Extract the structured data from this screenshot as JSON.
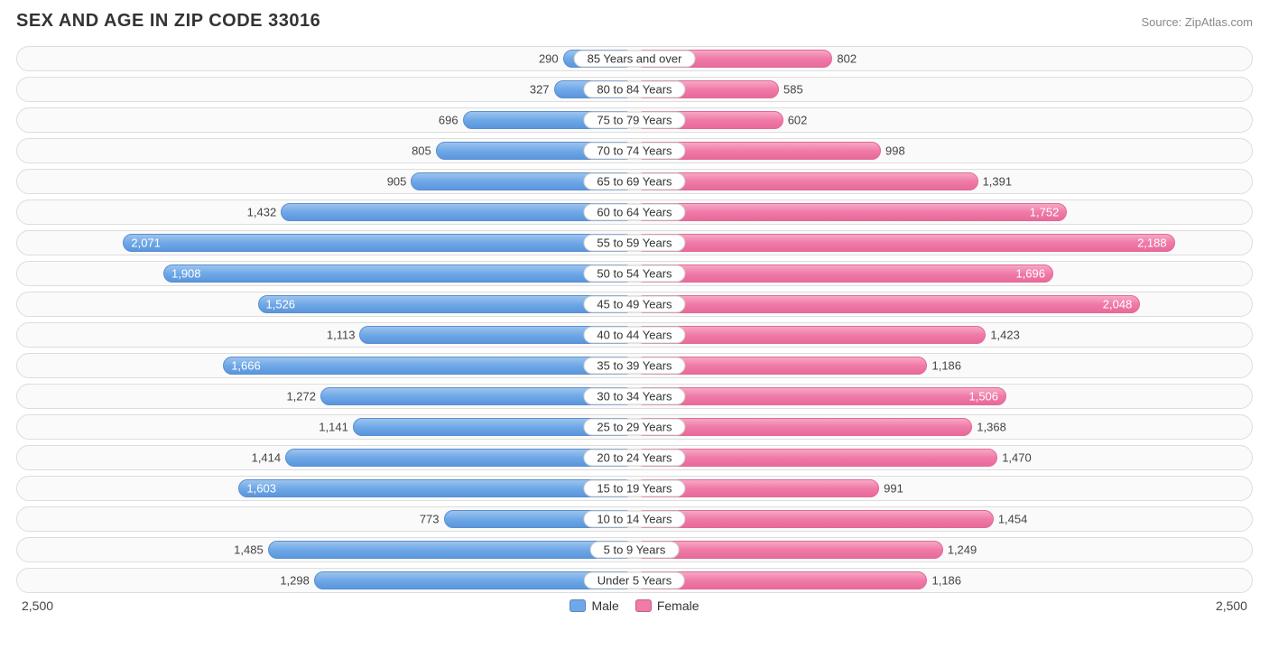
{
  "title": "SEX AND AGE IN ZIP CODE 33016",
  "source": "Source: ZipAtlas.com",
  "chart": {
    "type": "population-pyramid",
    "axis_max": 2500,
    "axis_max_label": "2,500",
    "male_color": "#6fa8e8",
    "male_gradient_top": "#9dc3ed",
    "male_gradient_bottom": "#5a96dc",
    "female_color": "#f07aa8",
    "female_gradient_top": "#f7a8c4",
    "female_gradient_bottom": "#e86a9a",
    "row_border_color": "#dddddd",
    "row_background": "#fafafa",
    "label_pill_bg": "#ffffff",
    "label_pill_border": "#cccccc",
    "text_color": "#444444",
    "inside_text_color": "#ffffff",
    "title_fontsize": 20,
    "label_fontsize": 13,
    "legend": {
      "male": "Male",
      "female": "Female"
    },
    "inside_threshold": 1500,
    "rows": [
      {
        "category": "85 Years and over",
        "male": 290,
        "male_label": "290",
        "female": 802,
        "female_label": "802"
      },
      {
        "category": "80 to 84 Years",
        "male": 327,
        "male_label": "327",
        "female": 585,
        "female_label": "585"
      },
      {
        "category": "75 to 79 Years",
        "male": 696,
        "male_label": "696",
        "female": 602,
        "female_label": "602"
      },
      {
        "category": "70 to 74 Years",
        "male": 805,
        "male_label": "805",
        "female": 998,
        "female_label": "998"
      },
      {
        "category": "65 to 69 Years",
        "male": 905,
        "male_label": "905",
        "female": 1391,
        "female_label": "1,391"
      },
      {
        "category": "60 to 64 Years",
        "male": 1432,
        "male_label": "1,432",
        "female": 1752,
        "female_label": "1,752"
      },
      {
        "category": "55 to 59 Years",
        "male": 2071,
        "male_label": "2,071",
        "female": 2188,
        "female_label": "2,188"
      },
      {
        "category": "50 to 54 Years",
        "male": 1908,
        "male_label": "1,908",
        "female": 1696,
        "female_label": "1,696"
      },
      {
        "category": "45 to 49 Years",
        "male": 1526,
        "male_label": "1,526",
        "female": 2048,
        "female_label": "2,048"
      },
      {
        "category": "40 to 44 Years",
        "male": 1113,
        "male_label": "1,113",
        "female": 1423,
        "female_label": "1,423"
      },
      {
        "category": "35 to 39 Years",
        "male": 1666,
        "male_label": "1,666",
        "female": 1186,
        "female_label": "1,186"
      },
      {
        "category": "30 to 34 Years",
        "male": 1272,
        "male_label": "1,272",
        "female": 1506,
        "female_label": "1,506"
      },
      {
        "category": "25 to 29 Years",
        "male": 1141,
        "male_label": "1,141",
        "female": 1368,
        "female_label": "1,368"
      },
      {
        "category": "20 to 24 Years",
        "male": 1414,
        "male_label": "1,414",
        "female": 1470,
        "female_label": "1,470"
      },
      {
        "category": "15 to 19 Years",
        "male": 1603,
        "male_label": "1,603",
        "female": 991,
        "female_label": "991"
      },
      {
        "category": "10 to 14 Years",
        "male": 773,
        "male_label": "773",
        "female": 1454,
        "female_label": "1,454"
      },
      {
        "category": "5 to 9 Years",
        "male": 1485,
        "male_label": "1,485",
        "female": 1249,
        "female_label": "1,249"
      },
      {
        "category": "Under 5 Years",
        "male": 1298,
        "male_label": "1,298",
        "female": 1186,
        "female_label": "1,186"
      }
    ]
  }
}
